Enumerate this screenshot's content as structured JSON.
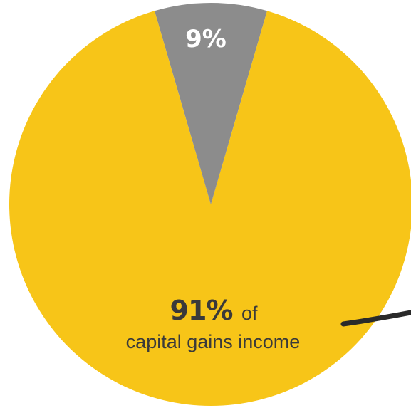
{
  "chart_data": {
    "type": "pie",
    "slices": [
      {
        "value": 91,
        "color": "#f7c518"
      },
      {
        "value": 9,
        "color": "#8c8c8c"
      }
    ],
    "labels": {
      "minor_slice": "9%",
      "major_percent": "91%",
      "major_of": "of",
      "major_caption": "capital gains income"
    },
    "colors": {
      "major": "#f7c518",
      "minor": "#8c8c8c",
      "label_dark": "#3a3a3a",
      "label_light": "#ffffff",
      "pointer": "#2a2a2a"
    }
  }
}
